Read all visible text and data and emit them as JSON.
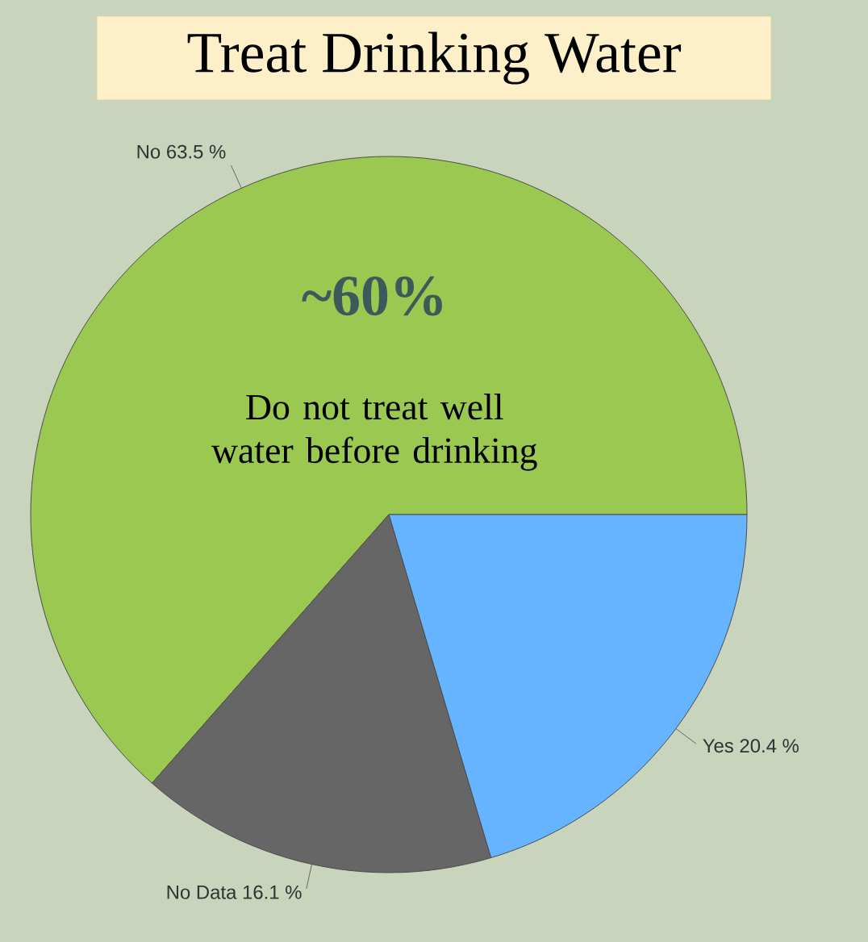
{
  "chart_data": {
    "type": "pie",
    "title": "Treat Drinking Water",
    "categories": [
      "No",
      "Yes",
      "No Data"
    ],
    "values": [
      63.5,
      20.4,
      16.1
    ],
    "value_labels": [
      "63.5 %",
      "20.4 %",
      "16.1 %"
    ],
    "colors": [
      "#9bc850",
      "#66b3ff",
      "#666666"
    ],
    "annotations": [
      "~60%",
      "Do not treat well water before drinking"
    ]
  }
}
